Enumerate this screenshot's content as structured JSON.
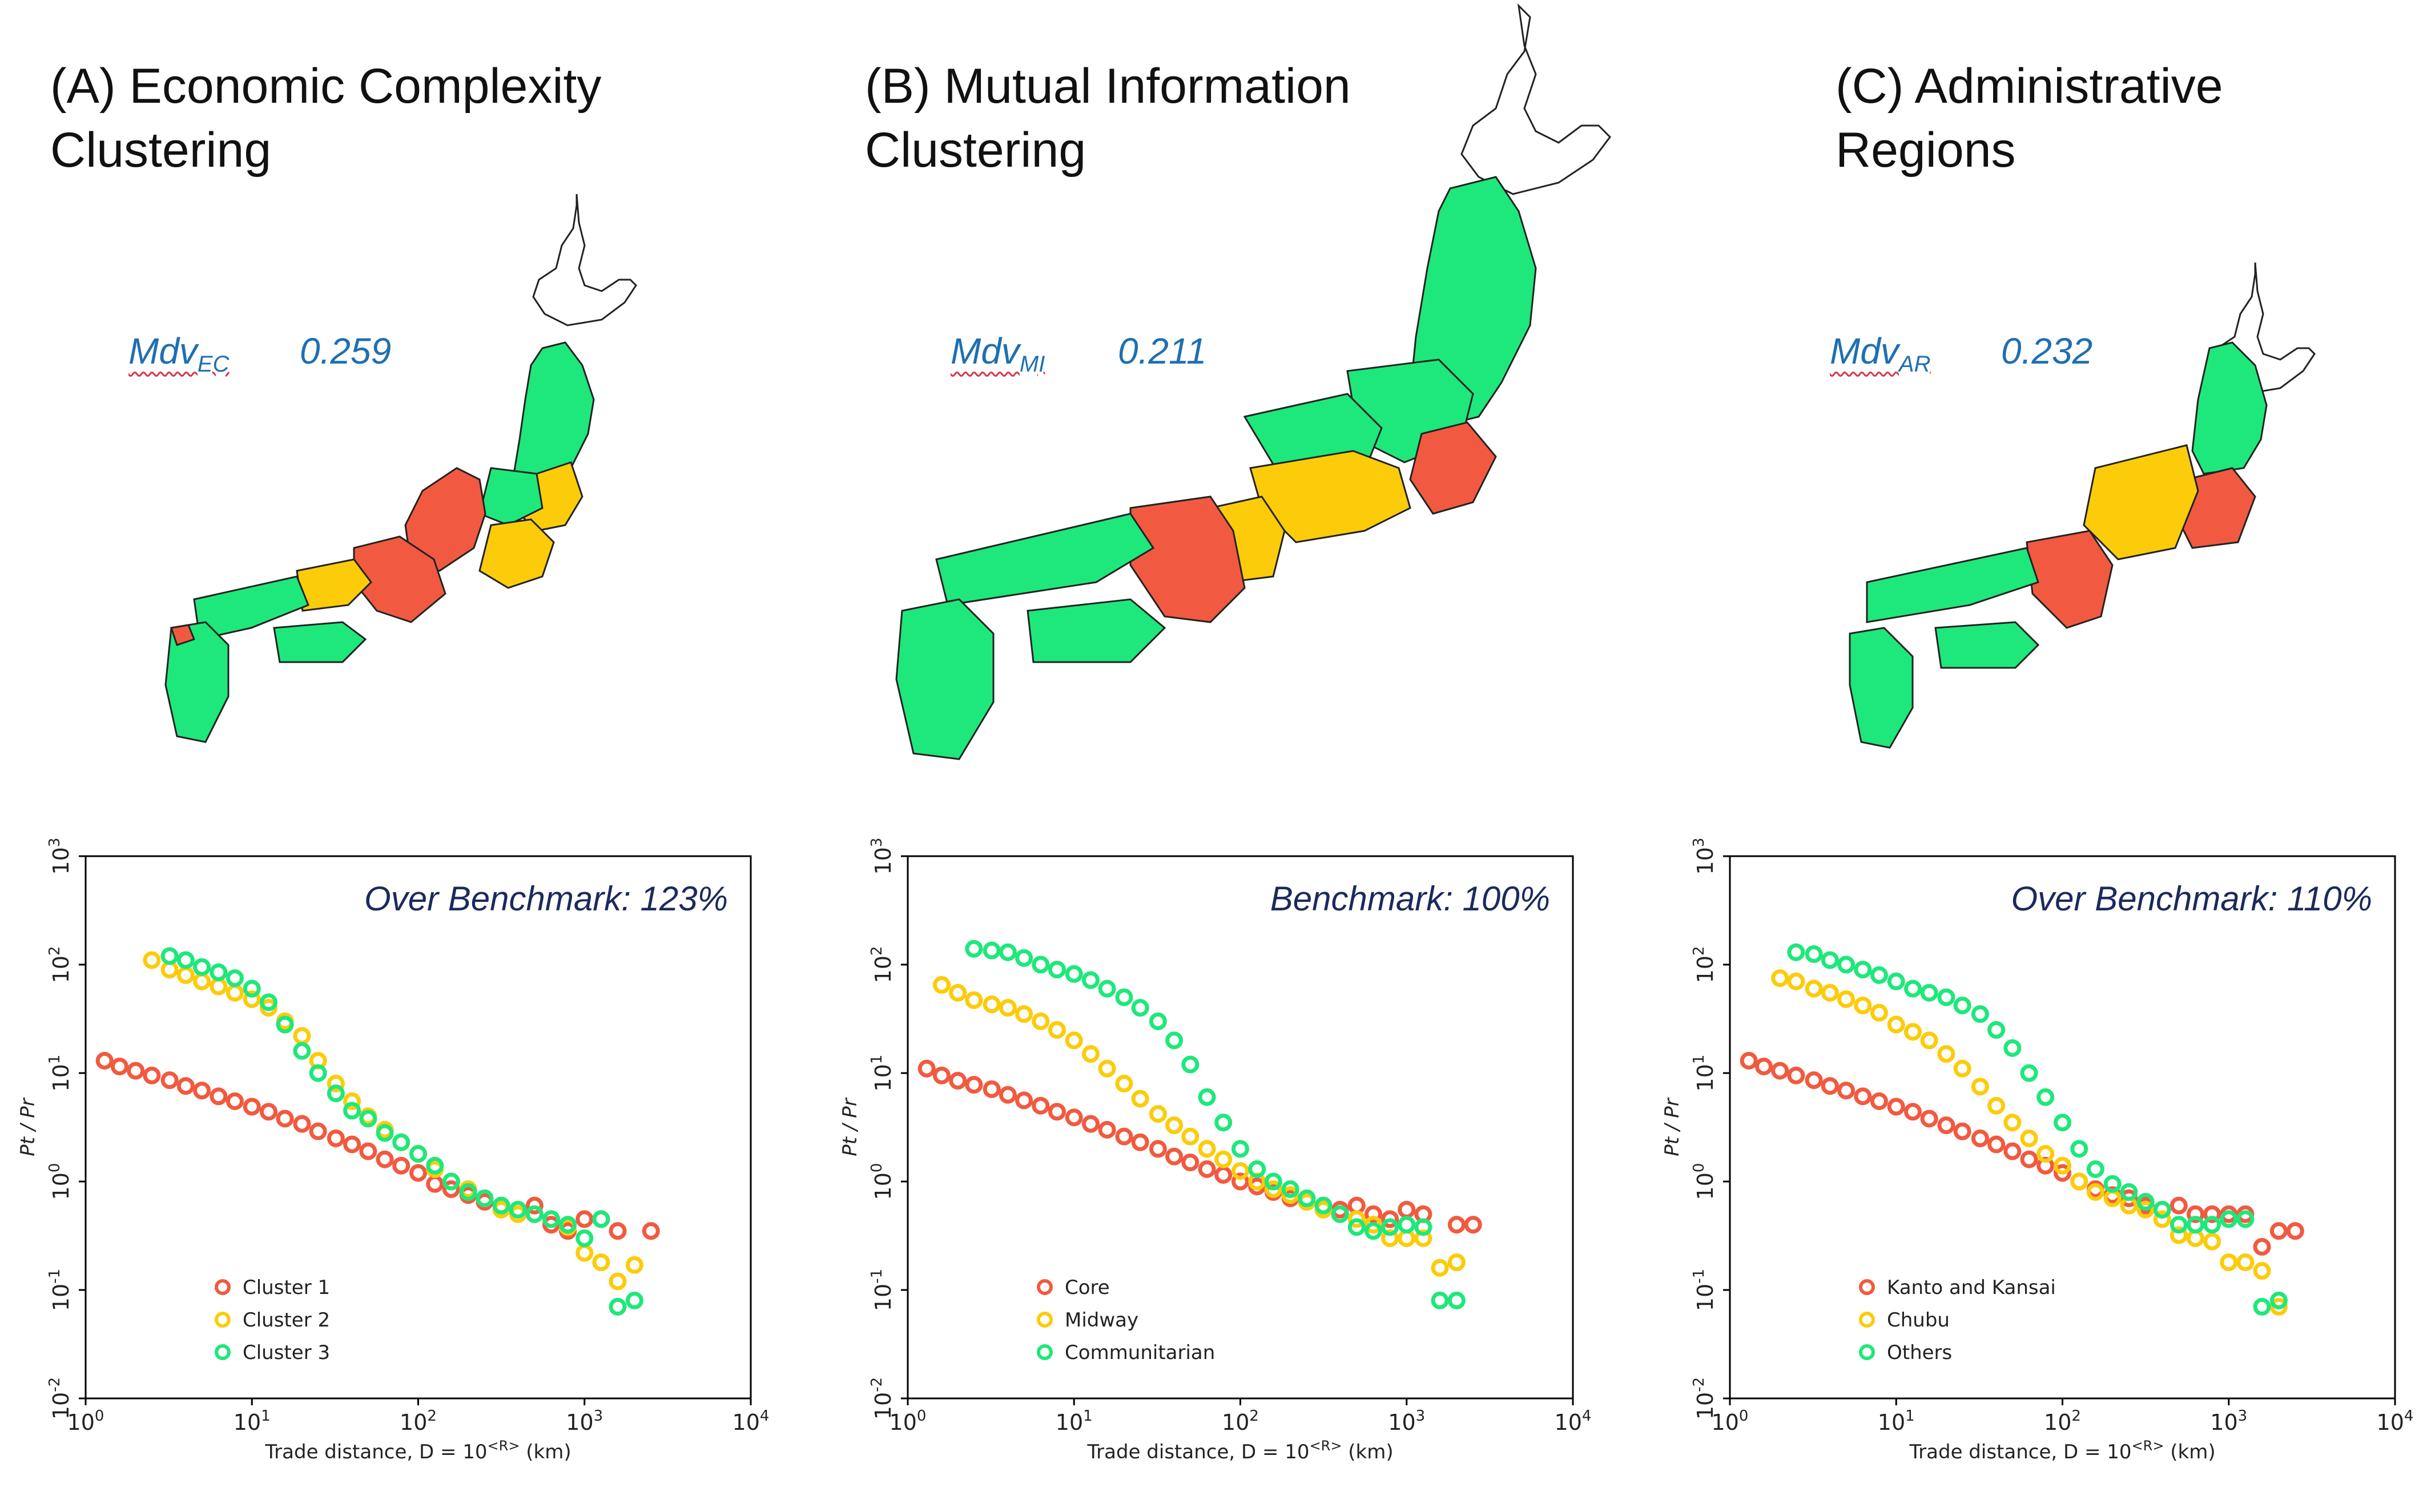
{
  "panels": [
    {
      "title": "(A) Economic Complexity\nClustering",
      "mdv_base": "Mdv",
      "mdv_sub": "EC",
      "mdv_value": "0.259",
      "map_colors": {
        "red": "#f15a40",
        "yellow": "#fccc0a",
        "green": "#1ee87b"
      }
    },
    {
      "title": "(B) Mutual Information\nClustering",
      "mdv_base": "Mdv",
      "mdv_sub": "MI",
      "mdv_value": "0.211",
      "map_colors": {
        "red": "#f15a40",
        "yellow": "#fccc0a",
        "green": "#1ee87b"
      }
    },
    {
      "title": "(C) Administrative\nRegions",
      "mdv_base": "Mdv",
      "mdv_sub": "AR",
      "mdv_value": "0.232",
      "map_colors": {
        "red": "#f15a40",
        "yellow": "#fccc0a",
        "green": "#1ee87b"
      }
    }
  ],
  "chart_data": [
    {
      "type": "scatter",
      "benchmark_label": "Over Benchmark: 123%",
      "xlabel": "Trade distance, D = 10^<R> (km)",
      "ylabel": "Pt / Pr",
      "xscale": "log",
      "yscale": "log",
      "xlim_exp": [
        0,
        4
      ],
      "ylim_exp": [
        -2,
        3
      ],
      "x_ticks": [
        "10^0",
        "10^1",
        "10^2",
        "10^3",
        "10^4"
      ],
      "y_ticks": [
        "10^-2",
        "10^-1",
        "10^0",
        "10^1",
        "10^2",
        "10^3"
      ],
      "legend_position": "lower-left",
      "series": [
        {
          "name": "Cluster 1",
          "color": "#f15a40",
          "x": [
            1.3,
            1.6,
            2.0,
            2.5,
            3.2,
            4.0,
            5.0,
            6.3,
            7.9,
            10,
            12.6,
            15.8,
            20,
            25,
            32,
            40,
            50,
            63,
            79,
            100,
            126,
            158,
            200,
            251,
            316,
            398,
            501,
            631,
            794,
            1000,
            1259,
            1585,
            2512
          ],
          "y": [
            13,
            11.5,
            10.5,
            9.5,
            8.6,
            7.6,
            6.9,
            6.1,
            5.5,
            4.9,
            4.4,
            3.8,
            3.4,
            2.9,
            2.5,
            2.2,
            1.9,
            1.6,
            1.4,
            1.2,
            0.95,
            0.85,
            0.75,
            0.65,
            0.6,
            0.55,
            0.6,
            0.4,
            0.35,
            0.45,
            0.45,
            0.35,
            0.35
          ]
        },
        {
          "name": "Cluster 2",
          "color": "#fccc0a",
          "x": [
            2.5,
            3.2,
            4.0,
            5.0,
            6.3,
            7.9,
            10,
            12.6,
            15.8,
            20,
            25,
            32,
            40,
            50,
            63,
            79,
            100,
            126,
            158,
            200,
            251,
            316,
            398,
            501,
            631,
            794,
            1000,
            1259,
            1585,
            2000
          ],
          "y": [
            110,
            90,
            80,
            70,
            63,
            55,
            48,
            40,
            30,
            22,
            13,
            8,
            5.5,
            4,
            3,
            2.3,
            1.8,
            1.3,
            1.0,
            0.85,
            0.7,
            0.55,
            0.5,
            0.5,
            0.45,
            0.38,
            0.22,
            0.18,
            0.12,
            0.17
          ]
        },
        {
          "name": "Cluster 3",
          "color": "#1ee87b",
          "x": [
            3.2,
            4.0,
            5.0,
            6.3,
            7.9,
            10,
            12.6,
            15.8,
            20,
            25,
            32,
            40,
            50,
            63,
            79,
            100,
            126,
            158,
            200,
            251,
            316,
            398,
            501,
            631,
            794,
            1000,
            1259,
            1585,
            2000
          ],
          "y": [
            120,
            110,
            95,
            85,
            75,
            60,
            45,
            28,
            16,
            10,
            6.5,
            4.5,
            3.8,
            2.8,
            2.3,
            1.8,
            1.4,
            1.0,
            0.8,
            0.7,
            0.6,
            0.55,
            0.5,
            0.45,
            0.4,
            0.3,
            0.45,
            0.07,
            0.08
          ]
        }
      ]
    },
    {
      "type": "scatter",
      "benchmark_label": "Benchmark: 100%",
      "xlabel": "Trade distance, D = 10^<R> (km)",
      "ylabel": "Pt / Pr",
      "xscale": "log",
      "yscale": "log",
      "xlim_exp": [
        0,
        4
      ],
      "ylim_exp": [
        -2,
        3
      ],
      "x_ticks": [
        "10^0",
        "10^1",
        "10^2",
        "10^3",
        "10^4"
      ],
      "y_ticks": [
        "10^-2",
        "10^-1",
        "10^0",
        "10^1",
        "10^2",
        "10^3"
      ],
      "legend_position": "lower-left",
      "series": [
        {
          "name": "Core",
          "color": "#f15a40",
          "x": [
            1.3,
            1.6,
            2.0,
            2.5,
            3.2,
            4.0,
            5.0,
            6.3,
            7.9,
            10,
            12.6,
            15.8,
            20,
            25,
            32,
            40,
            50,
            63,
            79,
            100,
            126,
            158,
            200,
            251,
            316,
            398,
            501,
            631,
            794,
            1000,
            1259,
            2000,
            2512
          ],
          "y": [
            11,
            9.5,
            8.5,
            7.8,
            7.1,
            6.3,
            5.6,
            5.0,
            4.4,
            3.9,
            3.4,
            3.0,
            2.6,
            2.3,
            2.0,
            1.7,
            1.5,
            1.3,
            1.15,
            1.0,
            0.9,
            0.8,
            0.7,
            0.65,
            0.6,
            0.55,
            0.6,
            0.5,
            0.45,
            0.55,
            0.5,
            0.4,
            0.4
          ]
        },
        {
          "name": "Midway",
          "color": "#fccc0a",
          "x": [
            1.6,
            2.0,
            2.5,
            3.2,
            4.0,
            5.0,
            6.3,
            7.9,
            10,
            12.6,
            15.8,
            20,
            25,
            32,
            40,
            50,
            63,
            79,
            100,
            126,
            158,
            200,
            251,
            316,
            398,
            501,
            631,
            794,
            1000,
            1259,
            1585,
            2000
          ],
          "y": [
            65,
            55,
            47,
            43,
            40,
            35,
            30,
            25,
            20,
            15,
            11,
            8,
            5.8,
            4.2,
            3.3,
            2.6,
            2.0,
            1.6,
            1.25,
            1.0,
            0.85,
            0.75,
            0.65,
            0.55,
            0.5,
            0.45,
            0.4,
            0.3,
            0.3,
            0.3,
            0.16,
            0.18
          ]
        },
        {
          "name": "Communitarian",
          "color": "#1ee87b",
          "x": [
            2.5,
            3.2,
            4.0,
            5.0,
            6.3,
            7.9,
            10,
            12.6,
            15.8,
            20,
            25,
            32,
            40,
            50,
            63,
            79,
            100,
            126,
            158,
            200,
            251,
            316,
            398,
            501,
            631,
            794,
            1000,
            1259,
            1585,
            2000
          ],
          "y": [
            140,
            135,
            130,
            115,
            100,
            90,
            82,
            72,
            60,
            50,
            40,
            30,
            20,
            12,
            6,
            3.5,
            2.0,
            1.3,
            1.0,
            0.85,
            0.7,
            0.6,
            0.5,
            0.38,
            0.35,
            0.38,
            0.4,
            0.38,
            0.08,
            0.08
          ]
        }
      ]
    },
    {
      "type": "scatter",
      "benchmark_label": "Over Benchmark: 110%",
      "xlabel": "Trade distance, D = 10^<R> (km)",
      "ylabel": "Pt / Pr",
      "xscale": "log",
      "yscale": "log",
      "xlim_exp": [
        0,
        4
      ],
      "ylim_exp": [
        -2,
        3
      ],
      "x_ticks": [
        "10^0",
        "10^1",
        "10^2",
        "10^3",
        "10^4"
      ],
      "y_ticks": [
        "10^-2",
        "10^-1",
        "10^0",
        "10^1",
        "10^2",
        "10^3"
      ],
      "legend_position": "lower-left",
      "series": [
        {
          "name": "Kanto and Kansai",
          "color": "#f15a40",
          "x": [
            1.3,
            1.6,
            2.0,
            2.5,
            3.2,
            4.0,
            5.0,
            6.3,
            7.9,
            10,
            12.6,
            15.8,
            20,
            25,
            32,
            40,
            50,
            63,
            79,
            100,
            126,
            158,
            200,
            251,
            316,
            398,
            501,
            631,
            794,
            1000,
            1259,
            1585,
            2000,
            2512
          ],
          "y": [
            13,
            11.5,
            10.5,
            9.5,
            8.6,
            7.6,
            6.9,
            6.1,
            5.5,
            4.9,
            4.4,
            3.8,
            3.3,
            2.9,
            2.5,
            2.2,
            1.9,
            1.6,
            1.4,
            1.2,
            1.0,
            0.85,
            0.75,
            0.7,
            0.6,
            0.55,
            0.6,
            0.5,
            0.5,
            0.5,
            0.5,
            0.25,
            0.35,
            0.35
          ]
        },
        {
          "name": "Chubu",
          "color": "#fccc0a",
          "x": [
            2.0,
            2.5,
            3.2,
            4.0,
            5.0,
            6.3,
            7.9,
            10,
            12.6,
            15.8,
            20,
            25,
            32,
            40,
            50,
            63,
            79,
            100,
            126,
            158,
            200,
            251,
            316,
            398,
            501,
            631,
            794,
            1000,
            1259,
            1585,
            2000
          ],
          "y": [
            75,
            70,
            60,
            55,
            48,
            42,
            36,
            28,
            24,
            20,
            15,
            11,
            7.5,
            5,
            3.5,
            2.5,
            1.8,
            1.4,
            1.0,
            0.8,
            0.7,
            0.6,
            0.55,
            0.45,
            0.32,
            0.3,
            0.28,
            0.18,
            0.18,
            0.15,
            0.07
          ]
        },
        {
          "name": "Others",
          "color": "#1ee87b",
          "x": [
            2.5,
            3.2,
            4.0,
            5.0,
            6.3,
            7.9,
            10,
            12.6,
            15.8,
            20,
            25,
            32,
            40,
            50,
            63,
            79,
            100,
            126,
            158,
            200,
            251,
            316,
            398,
            501,
            631,
            794,
            1000,
            1259,
            1585,
            2000
          ],
          "y": [
            130,
            125,
            110,
            100,
            90,
            80,
            70,
            60,
            55,
            50,
            42,
            35,
            25,
            17,
            10,
            6,
            3.5,
            2.0,
            1.3,
            0.95,
            0.8,
            0.65,
            0.55,
            0.4,
            0.4,
            0.4,
            0.45,
            0.45,
            0.07,
            0.08
          ]
        }
      ]
    }
  ]
}
